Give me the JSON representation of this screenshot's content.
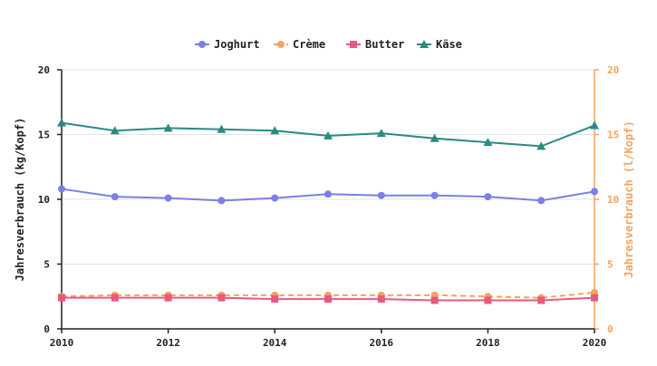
{
  "chart_data": {
    "type": "line",
    "x": [
      2010,
      2011,
      2012,
      2013,
      2014,
      2015,
      2016,
      2017,
      2018,
      2019,
      2020
    ],
    "x_ticks": [
      "2010",
      "2012",
      "2014",
      "2016",
      "2018",
      "2020"
    ],
    "y_ticks": [
      "0",
      "5",
      "10",
      "15",
      "20"
    ],
    "y2_ticks": [
      "0",
      "5",
      "10",
      "15",
      "20"
    ],
    "xlim": [
      2010,
      2020
    ],
    "ylim": [
      0,
      20
    ],
    "y2lim": [
      0,
      20
    ],
    "ylabel": "Jahresverbrauch (kg/Kopf)",
    "y2label": "Jahresverbrauch (l/Kopf)",
    "grid": true,
    "legend_position": "top-center",
    "series": [
      {
        "name": "Joghurt",
        "axis": "left",
        "color": "#7b7fe6",
        "marker": "circle",
        "dashed": false,
        "values": [
          10.8,
          10.2,
          10.1,
          9.9,
          10.1,
          10.4,
          10.3,
          10.3,
          10.2,
          9.9,
          10.6
        ]
      },
      {
        "name": "Crème",
        "axis": "right",
        "color": "#f5a25d",
        "marker": "circle",
        "dashed": true,
        "values": [
          2.5,
          2.6,
          2.6,
          2.6,
          2.6,
          2.6,
          2.6,
          2.6,
          2.5,
          2.4,
          2.8
        ]
      },
      {
        "name": "Butter",
        "axis": "left",
        "color": "#e9597f",
        "marker": "square",
        "dashed": false,
        "values": [
          2.4,
          2.4,
          2.4,
          2.4,
          2.3,
          2.3,
          2.3,
          2.2,
          2.2,
          2.2,
          2.4
        ]
      },
      {
        "name": "Käse",
        "axis": "left",
        "color": "#2a8a84",
        "marker": "triangle",
        "dashed": false,
        "values": [
          15.9,
          15.3,
          15.5,
          15.4,
          15.3,
          14.9,
          15.1,
          14.7,
          14.4,
          14.1,
          15.7
        ]
      }
    ]
  }
}
